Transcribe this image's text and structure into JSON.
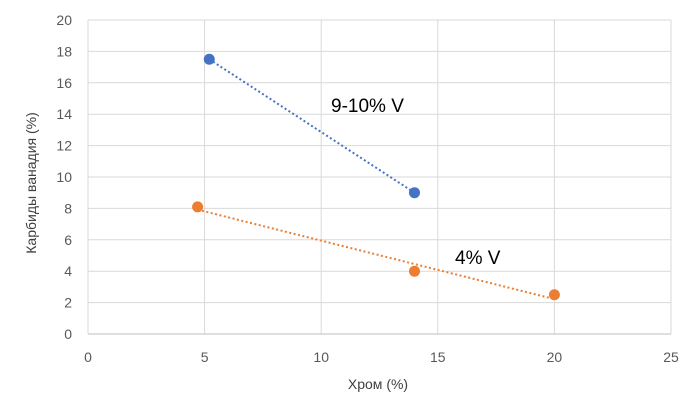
{
  "chart_data": {
    "type": "scatter",
    "title": "",
    "xlabel": "Хром (%)",
    "ylabel": "Карбиды ванадия (%)",
    "xlim": [
      0,
      25
    ],
    "ylim": [
      0,
      20
    ],
    "x_ticks": [
      0,
      5,
      10,
      15,
      20,
      25
    ],
    "y_ticks": [
      0,
      2,
      4,
      6,
      8,
      10,
      12,
      14,
      16,
      18,
      20
    ],
    "grid": true,
    "legend": "none",
    "series": [
      {
        "name": "9-10% V",
        "color": "#4472C4",
        "points": [
          {
            "x": 5.2,
            "y": 17.5
          },
          {
            "x": 14.0,
            "y": 9.0
          }
        ],
        "trendline": "linear-dotted"
      },
      {
        "name": "4% V",
        "color": "#ED7D31",
        "points": [
          {
            "x": 4.7,
            "y": 8.1
          },
          {
            "x": 14.0,
            "y": 4.0
          },
          {
            "x": 20.0,
            "y": 2.5
          }
        ],
        "trendline": "linear-dotted"
      }
    ],
    "annotations": [
      "9-10% V",
      "4% V"
    ]
  }
}
